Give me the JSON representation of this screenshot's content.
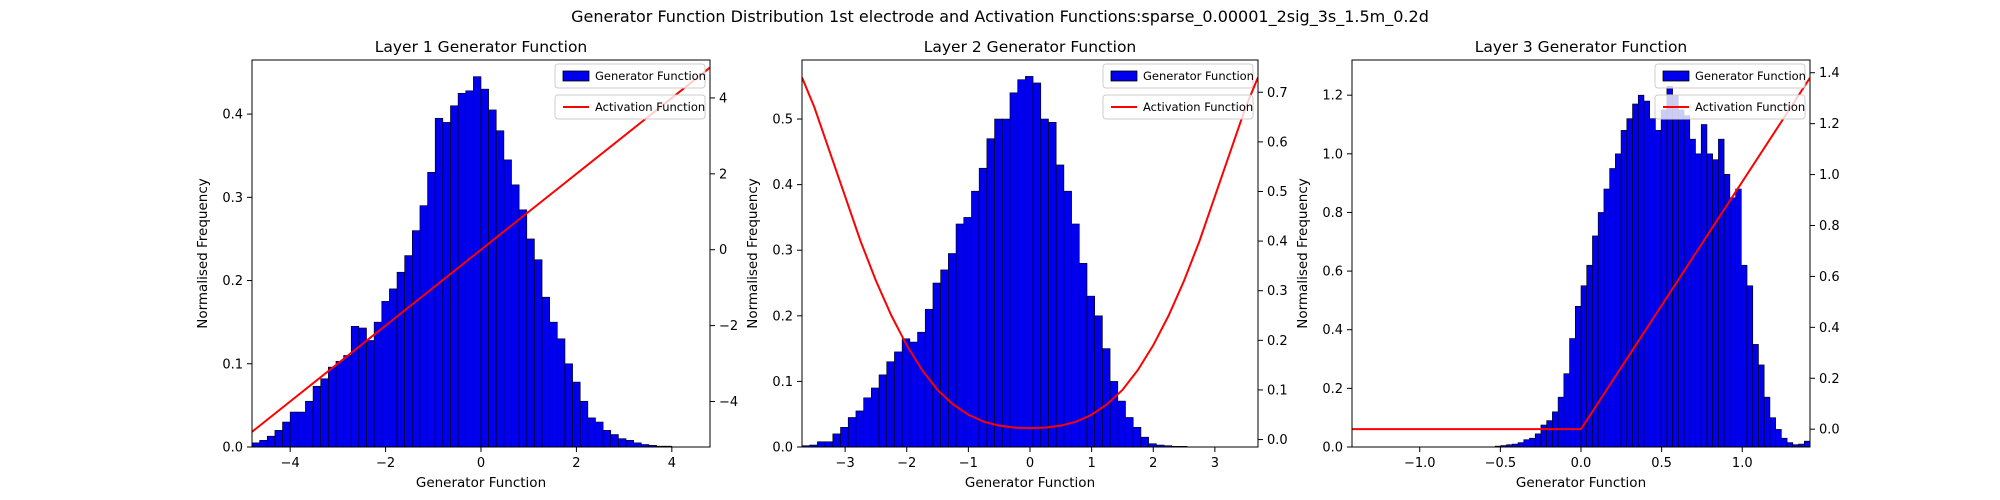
{
  "figure": {
    "suptitle": "Generator Function Distribution 1st electrode and Activation Functions:sparse_0.00001_2sig_3s_1.5m_0.2d"
  },
  "chart_data": [
    {
      "type": "bar",
      "title": "Layer 1 Generator Function",
      "xlabel": "Generator Function",
      "ylabel": "Normalised Frequency",
      "xlim": [
        -4.8,
        4.8
      ],
      "ylim": [
        0,
        0.465
      ],
      "y2lim": [
        -5.2,
        5.0
      ],
      "xticks": [
        -4,
        -2,
        0,
        2,
        4
      ],
      "xtick_labels": [
        "−4",
        "−2",
        "0",
        "2",
        "4"
      ],
      "yticks": [
        0.0,
        0.1,
        0.2,
        0.3,
        0.4
      ],
      "ytick_labels": [
        "0.0",
        "0.1",
        "0.2",
        "0.3",
        "0.4"
      ],
      "y2ticks": [
        -4,
        -2,
        0,
        2,
        4
      ],
      "y2tick_labels": [
        "−4",
        "−2",
        "0",
        "2",
        "4"
      ],
      "legend": [
        "Generator Function",
        "Activation Function"
      ],
      "legend_position": "top-right",
      "bar_color": "#0000ee",
      "line_color": "#ff0000",
      "histogram": {
        "x_start": -4.8,
        "bin_width": 0.16,
        "values": [
          0.005,
          0.008,
          0.013,
          0.02,
          0.03,
          0.042,
          0.042,
          0.055,
          0.073,
          0.082,
          0.096,
          0.103,
          0.11,
          0.145,
          0.143,
          0.128,
          0.15,
          0.175,
          0.19,
          0.21,
          0.23,
          0.26,
          0.29,
          0.33,
          0.395,
          0.39,
          0.41,
          0.425,
          0.428,
          0.445,
          0.43,
          0.405,
          0.38,
          0.345,
          0.315,
          0.285,
          0.25,
          0.225,
          0.18,
          0.15,
          0.13,
          0.1,
          0.078,
          0.055,
          0.035,
          0.03,
          0.02,
          0.015,
          0.01,
          0.008,
          0.005,
          0.003,
          0.002,
          0.001,
          0.001,
          0,
          0,
          0,
          0,
          0
        ]
      },
      "activation": {
        "x": [
          -4.8,
          4.8
        ],
        "y": [
          -4.8,
          4.8
        ]
      }
    },
    {
      "type": "bar",
      "title": "Layer 2 Generator Function",
      "xlabel": "Generator Function",
      "ylabel": "Normalised Frequency",
      "xlim": [
        -3.7,
        3.7
      ],
      "ylim": [
        0,
        0.59
      ],
      "y2lim": [
        -0.015,
        0.765
      ],
      "xticks": [
        -3,
        -2,
        -1,
        0,
        1,
        2,
        3
      ],
      "xtick_labels": [
        "−3",
        "−2",
        "−1",
        "0",
        "1",
        "2",
        "3"
      ],
      "yticks": [
        0.0,
        0.1,
        0.2,
        0.3,
        0.4,
        0.5
      ],
      "ytick_labels": [
        "0.0",
        "0.1",
        "0.2",
        "0.3",
        "0.4",
        "0.5"
      ],
      "y2ticks": [
        0.0,
        0.1,
        0.2,
        0.3,
        0.4,
        0.5,
        0.6,
        0.7
      ],
      "y2tick_labels": [
        "0.0",
        "0.1",
        "0.2",
        "0.3",
        "0.4",
        "0.5",
        "0.6",
        "0.7"
      ],
      "legend": [
        "Generator Function",
        "Activation Function"
      ],
      "legend_position": "top-right",
      "bar_color": "#0000ee",
      "line_color": "#ff0000",
      "histogram": {
        "x_start": -3.7,
        "bin_width": 0.125,
        "values": [
          0.002,
          0.003,
          0.008,
          0.008,
          0.02,
          0.03,
          0.045,
          0.055,
          0.075,
          0.09,
          0.11,
          0.13,
          0.145,
          0.165,
          0.16,
          0.175,
          0.21,
          0.25,
          0.27,
          0.295,
          0.34,
          0.35,
          0.39,
          0.425,
          0.47,
          0.5,
          0.5,
          0.54,
          0.56,
          0.565,
          0.555,
          0.5,
          0.495,
          0.43,
          0.39,
          0.34,
          0.28,
          0.23,
          0.2,
          0.15,
          0.1,
          0.07,
          0.045,
          0.03,
          0.015,
          0.005,
          0.003,
          0.002,
          0.001,
          0.001,
          0,
          0,
          0,
          0,
          0,
          0,
          0,
          0,
          0,
          0
        ]
      },
      "activation": {
        "x": [
          -3.7,
          -3.5,
          -3.25,
          -3.0,
          -2.75,
          -2.5,
          -2.25,
          -2.0,
          -1.75,
          -1.5,
          -1.25,
          -1.0,
          -0.75,
          -0.5,
          -0.25,
          0.0,
          0.25,
          0.5,
          0.75,
          1.0,
          1.25,
          1.5,
          1.75,
          2.0,
          2.25,
          2.5,
          2.75,
          3.0,
          3.25,
          3.5,
          3.7
        ],
        "y": [
          0.73,
          0.67,
          0.58,
          0.49,
          0.4,
          0.32,
          0.25,
          0.19,
          0.14,
          0.1,
          0.071,
          0.05,
          0.036,
          0.028,
          0.024,
          0.023,
          0.024,
          0.028,
          0.036,
          0.05,
          0.071,
          0.1,
          0.14,
          0.19,
          0.25,
          0.32,
          0.4,
          0.49,
          0.58,
          0.67,
          0.73
        ]
      }
    },
    {
      "type": "bar",
      "title": "Layer 3 Generator Function",
      "xlabel": "Generator Function",
      "ylabel": "Normalised Frequency",
      "xlim": [
        -1.42,
        1.42
      ],
      "ylim": [
        0,
        1.32
      ],
      "y2lim": [
        -0.07,
        1.45
      ],
      "xticks": [
        -1.0,
        -0.5,
        0.0,
        0.5,
        1.0
      ],
      "xtick_labels": [
        "−1.0",
        "−0.5",
        "0.0",
        "0.5",
        "1.0"
      ],
      "yticks": [
        0.0,
        0.2,
        0.4,
        0.6,
        0.8,
        1.0,
        1.2
      ],
      "ytick_labels": [
        "0.0",
        "0.2",
        "0.4",
        "0.6",
        "0.8",
        "1.0",
        "1.2"
      ],
      "y2ticks": [
        0.0,
        0.2,
        0.4,
        0.6,
        0.8,
        1.0,
        1.2,
        1.4
      ],
      "y2tick_labels": [
        "0.0",
        "0.2",
        "0.4",
        "0.6",
        "0.8",
        "1.0",
        "1.2",
        "1.4"
      ],
      "legend": [
        "Generator Function",
        "Activation Function"
      ],
      "legend_position": "top-right",
      "bar_color": "#0000ee",
      "line_color": "#ff0000",
      "histogram": {
        "x_start": -1.42,
        "bin_width": 0.0355,
        "values": [
          0,
          0,
          0,
          0,
          0,
          0,
          0,
          0,
          0,
          0,
          0,
          0,
          0,
          0,
          0,
          0,
          0,
          0,
          0,
          0,
          0,
          0,
          0,
          0,
          0,
          0.003,
          0.005,
          0.008,
          0.01,
          0.015,
          0.025,
          0.03,
          0.045,
          0.075,
          0.09,
          0.12,
          0.17,
          0.25,
          0.37,
          0.48,
          0.55,
          0.62,
          0.72,
          0.8,
          0.88,
          0.95,
          1.0,
          1.08,
          1.12,
          1.17,
          1.2,
          1.18,
          1.12,
          1.08,
          1.15,
          1.23,
          1.2,
          1.15,
          1.13,
          1.05,
          1.0,
          1.1,
          1.0,
          0.98,
          1.05,
          0.93,
          0.85,
          0.88,
          0.62,
          0.55,
          0.35,
          0.28,
          0.17,
          0.1,
          0.06,
          0.03,
          0.015,
          0.008,
          0.01,
          0.02
        ]
      },
      "activation": {
        "x": [
          -1.42,
          0.0,
          1.42
        ],
        "y": [
          0.0,
          0.0,
          1.38
        ]
      }
    }
  ]
}
